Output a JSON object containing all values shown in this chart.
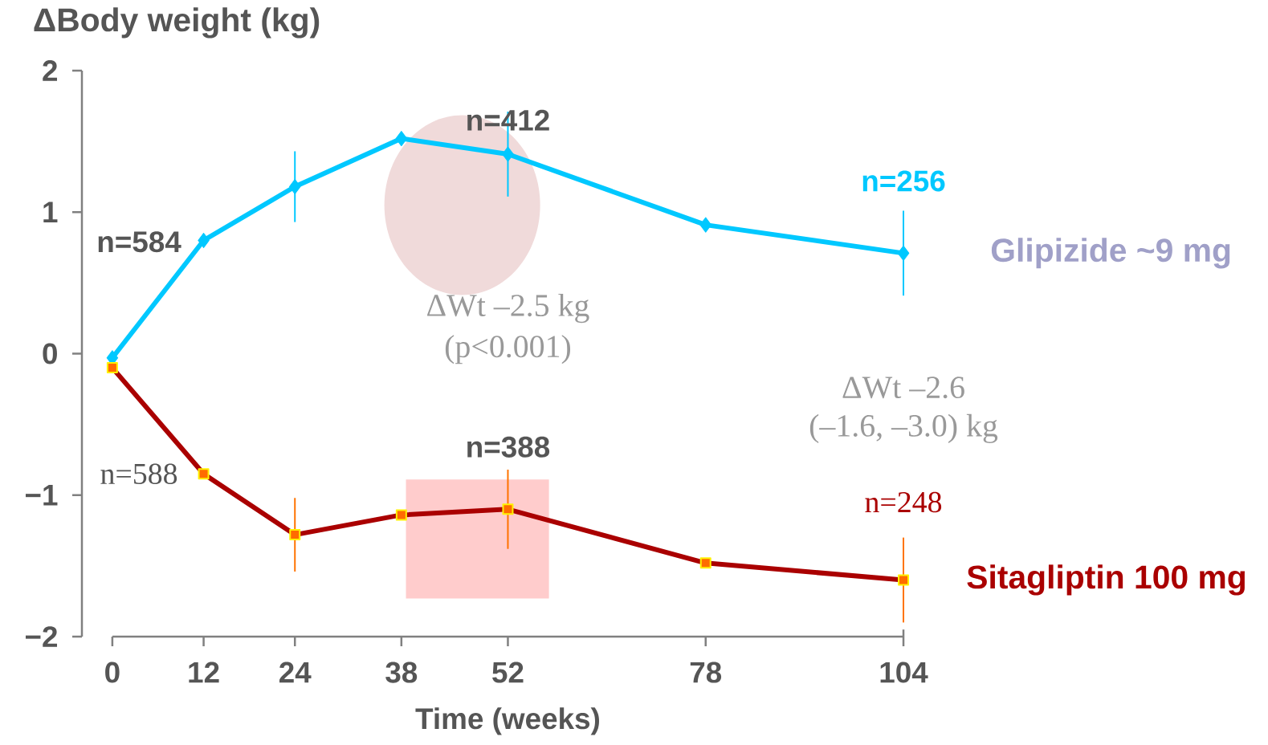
{
  "chart_data": {
    "type": "line",
    "xlabel": "Time (weeks)",
    "ylabel": "ΔBody weight (kg)",
    "x": [
      0,
      12,
      24,
      38,
      52,
      78,
      104
    ],
    "series": [
      {
        "name": "Glipizide ~9 mg",
        "color": "#00c8ff",
        "marker": "diamond",
        "values": [
          -0.03,
          0.8,
          1.18,
          1.52,
          1.41,
          0.91,
          0.71
        ],
        "errors": [
          null,
          null,
          0.25,
          null,
          0.3,
          null,
          0.3
        ]
      },
      {
        "name": "Sitagliptin 100 mg",
        "color": "#aa0000",
        "marker": "square",
        "values": [
          -0.1,
          -0.85,
          -1.28,
          -1.14,
          -1.1,
          -1.48,
          -1.6
        ],
        "errors": [
          null,
          null,
          0.26,
          null,
          0.28,
          null,
          0.3
        ]
      }
    ],
    "xlim": [
      -4,
      104
    ],
    "ylim": [
      -2,
      2
    ],
    "xticks": [
      0,
      12,
      24,
      38,
      52,
      78,
      104
    ],
    "yticks": [
      {
        "value": -2,
        "label": "−2"
      },
      {
        "value": -1,
        "label": "−1"
      },
      0,
      1,
      2
    ],
    "annotations": [
      "n=584",
      "n=412",
      "n=256",
      "ΔWt –2.5 kg",
      "(p<0.001)",
      "n=588",
      "n=388",
      "n=248",
      "ΔWt –2.6",
      "(–1.6, –3.0) kg"
    ],
    "legend": false
  }
}
